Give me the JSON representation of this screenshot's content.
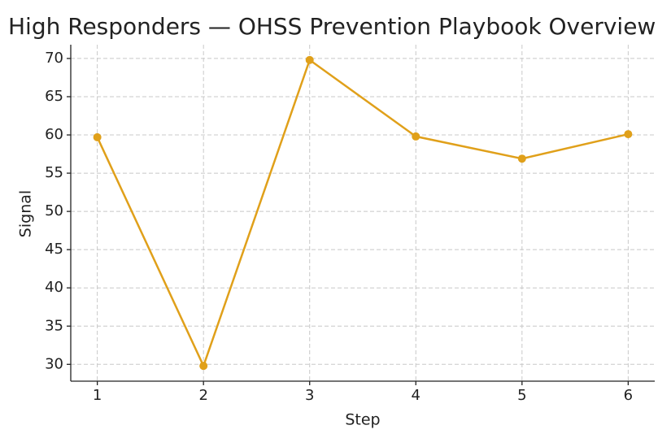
{
  "chart_data": {
    "type": "line",
    "title": "High Responders — OHSS Prevention Playbook Overview",
    "x_label": "Step",
    "y_label": "Signal",
    "x": [
      1,
      2,
      3,
      4,
      5,
      6
    ],
    "series": [
      {
        "name": "Signal",
        "color": "#e0a01a",
        "values": [
          59.7,
          29.8,
          69.8,
          59.8,
          56.9,
          60.1
        ]
      }
    ],
    "xlim": [
      0.75,
      6.25
    ],
    "xticks": [
      1,
      2,
      3,
      4,
      5,
      6
    ],
    "ylim": [
      27.8,
      71.8
    ],
    "yticks": [
      30,
      35,
      40,
      45,
      50,
      55,
      60,
      65,
      70
    ],
    "grid": true
  }
}
